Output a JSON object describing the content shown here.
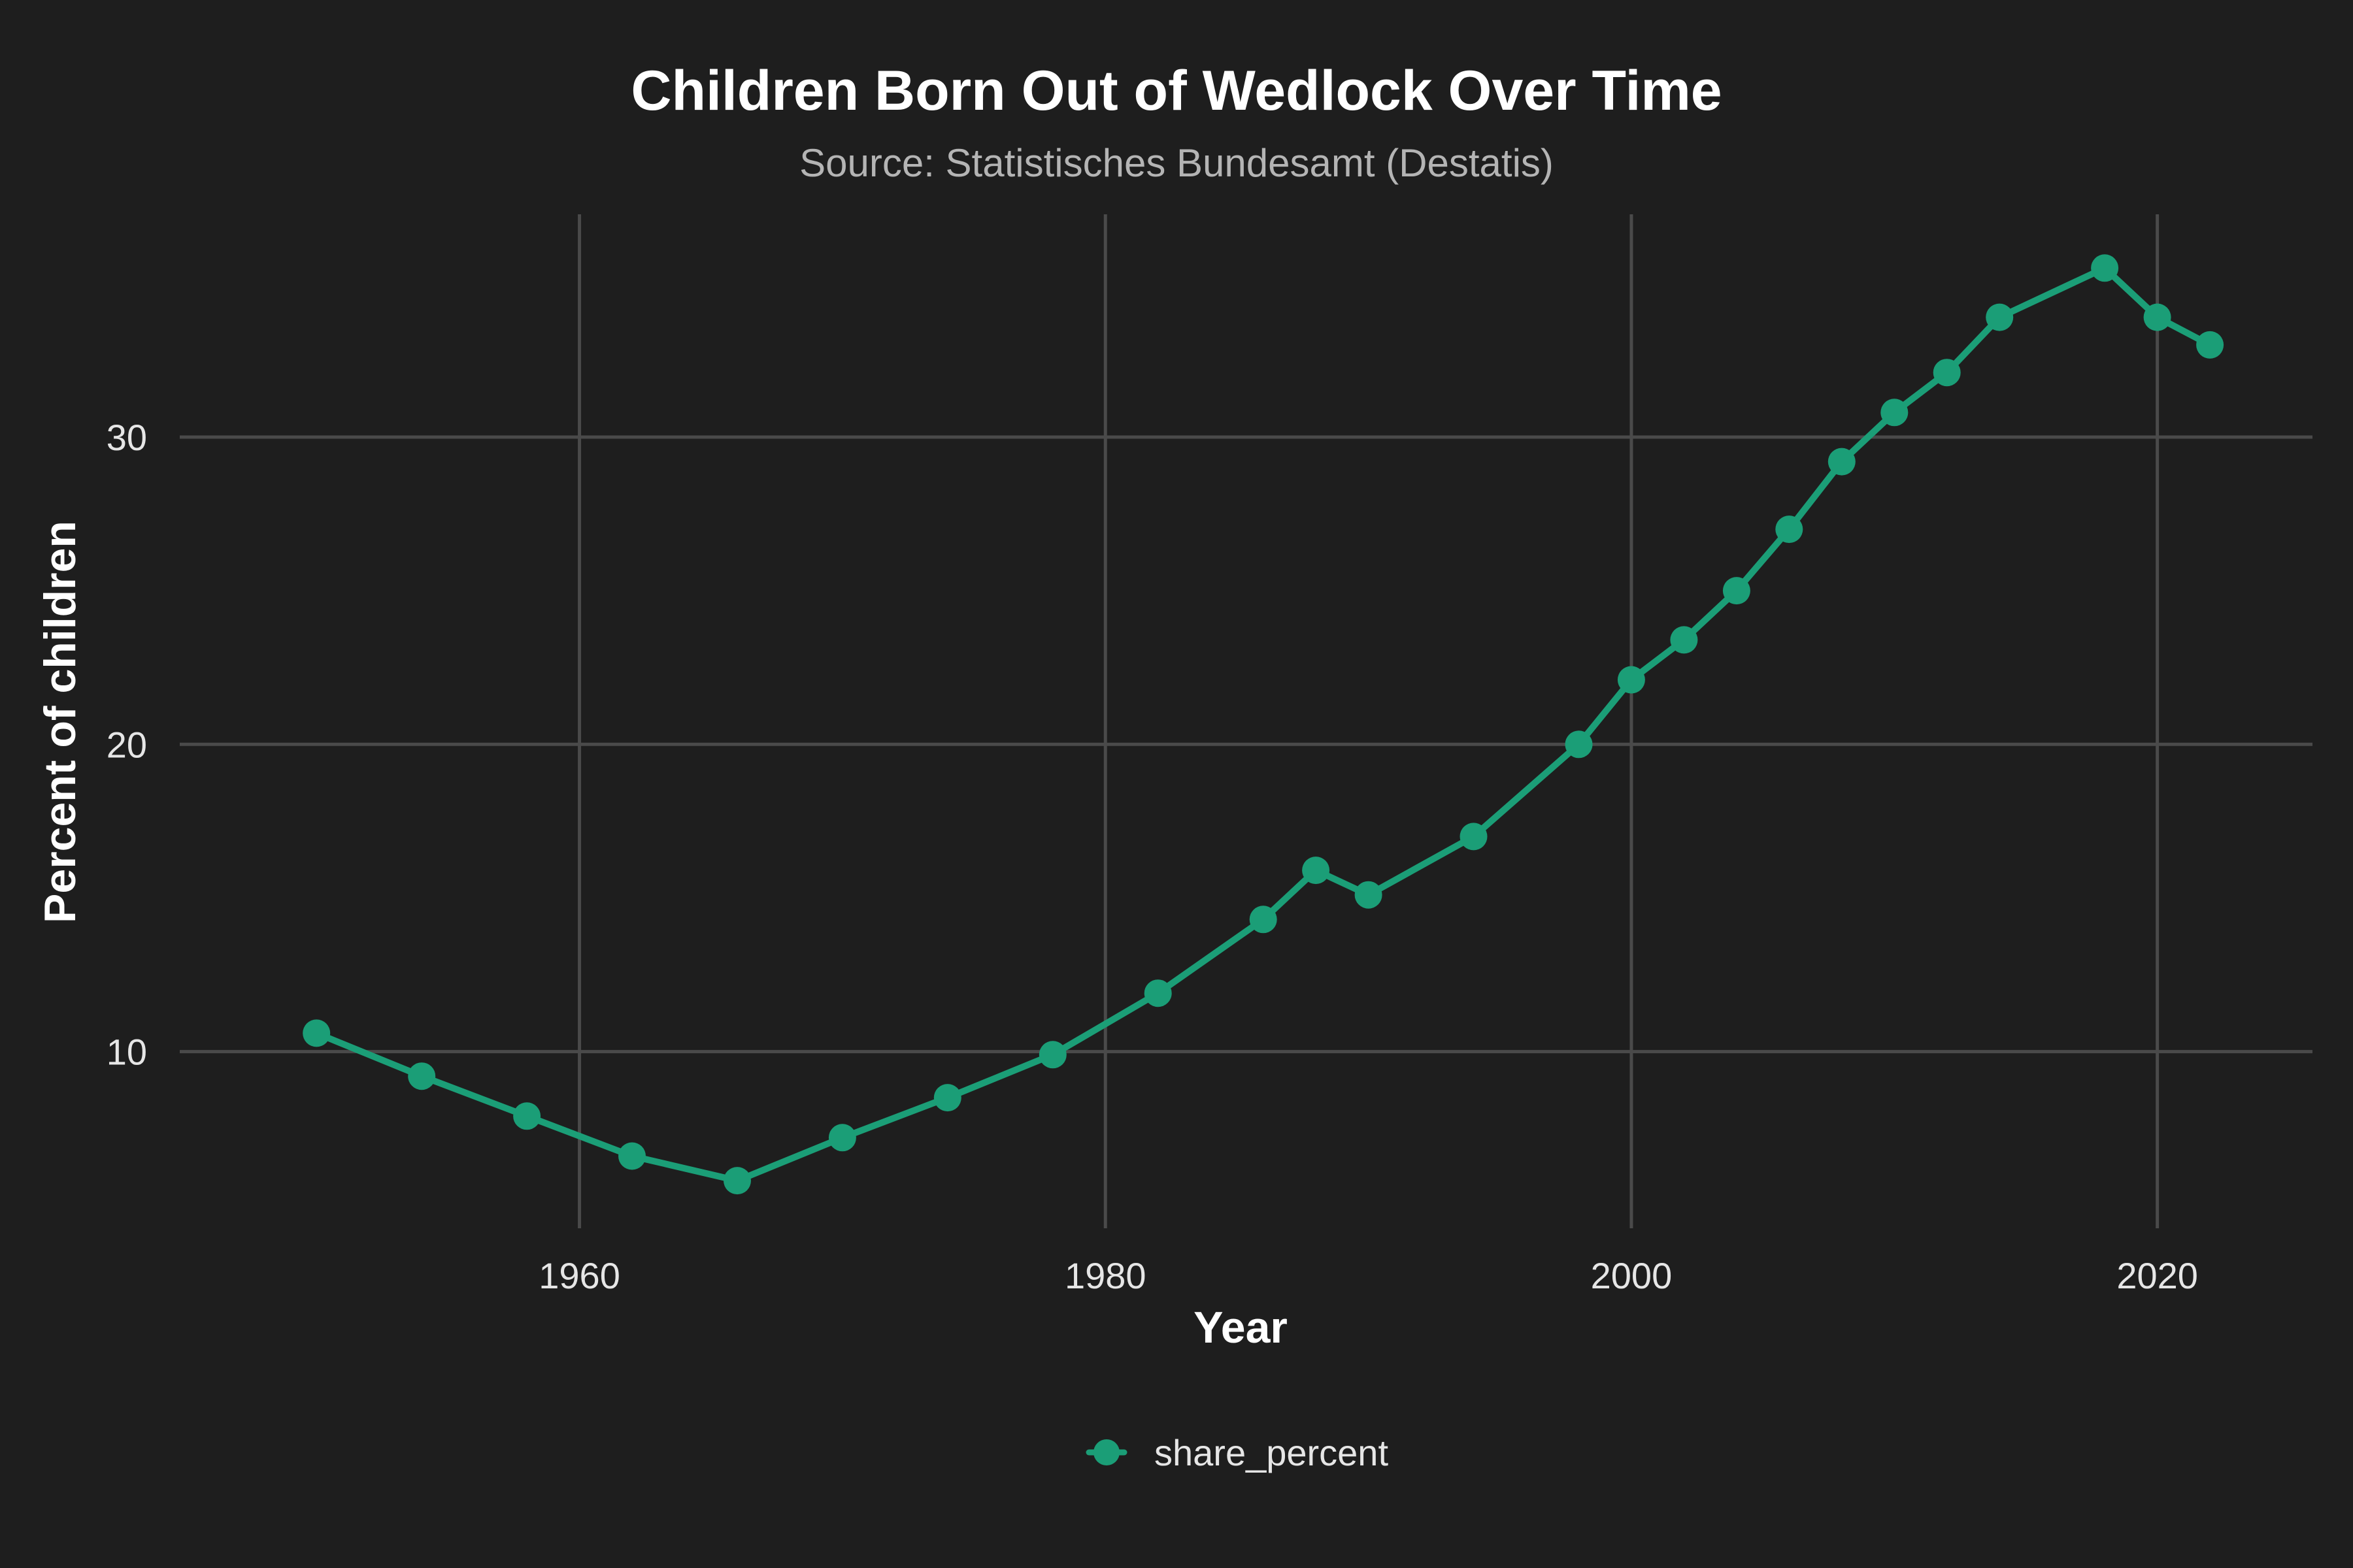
{
  "chart_data": {
    "type": "line",
    "title": "Children Born Out of Wedlock Over Time",
    "subtitle": "Source: Statistisches Bundesamt (Destatis)",
    "xlabel": "Year",
    "ylabel": "Percent of children",
    "xlim": [
      1944.8,
      2025.9
    ],
    "ylim": [
      4.25,
      37.25
    ],
    "x_ticks": [
      1960,
      1980,
      2000,
      2020
    ],
    "y_ticks": [
      10,
      20,
      30
    ],
    "grid": true,
    "legend_position": "bottom",
    "colors": {
      "background": "#1e1e1e",
      "grid": "#4a4a4a",
      "series": "#1b9e77"
    },
    "series": [
      {
        "name": "share_percent",
        "color": "#1b9e77",
        "x": [
          1950,
          1954,
          1958,
          1962,
          1966,
          1970,
          1974,
          1978,
          1982,
          1986,
          1988,
          1990,
          1994,
          1998,
          2000,
          2002,
          2004,
          2006,
          2008,
          2010,
          2012,
          2014,
          2018,
          2020,
          2022
        ],
        "y": [
          10.6,
          9.2,
          7.9,
          6.6,
          5.8,
          7.2,
          8.5,
          9.9,
          11.9,
          14.3,
          15.9,
          15.1,
          17.0,
          20.0,
          22.1,
          23.4,
          25.0,
          27.0,
          29.2,
          30.8,
          32.1,
          33.9,
          35.5,
          33.9,
          33.0
        ]
      }
    ]
  }
}
